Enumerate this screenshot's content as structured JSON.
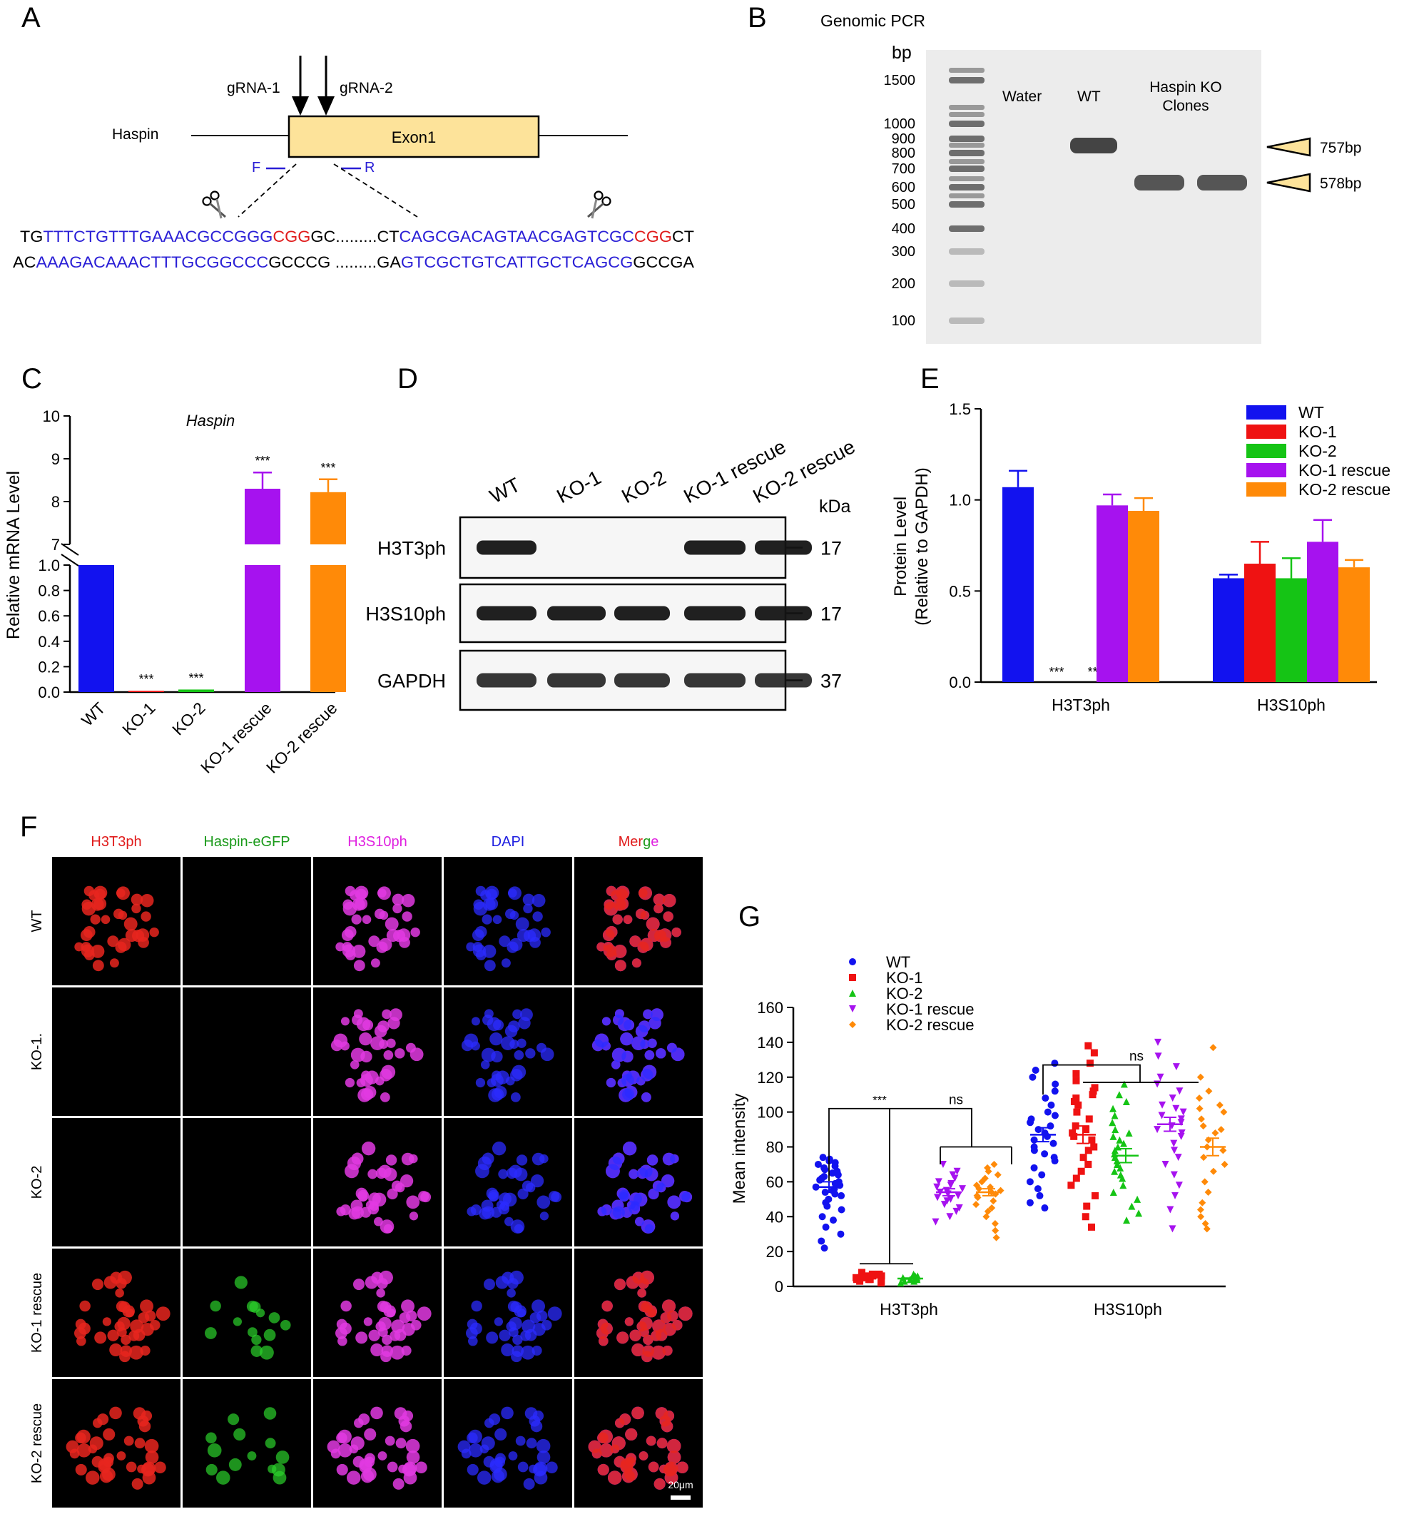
{
  "panels": {
    "A": {
      "letter": "A",
      "gene": "Haspin",
      "exon": "Exon1",
      "grna1": "gRNA-1",
      "grna2": "gRNA-2",
      "primer_f": "F",
      "primer_r": "R",
      "seq_top": [
        {
          "t": "TG",
          "c": "#000000"
        },
        {
          "t": "TTTCTGTTTGAAACGCCGGG",
          "c": "#2a1fd6"
        },
        {
          "t": "CGG",
          "c": "#e01b1b"
        },
        {
          "t": "GC.........CT",
          "c": "#000000"
        },
        {
          "t": "CAGCGACAGTAACGAGTCGC",
          "c": "#2a1fd6"
        },
        {
          "t": "CGG",
          "c": "#e01b1b"
        },
        {
          "t": "CT",
          "c": "#000000"
        }
      ],
      "seq_bottom": [
        {
          "t": "AC",
          "c": "#000000"
        },
        {
          "t": "AAAGACAAACTTTGCGGCCC",
          "c": "#2a1fd6"
        },
        {
          "t": "GCCCG .........GA",
          "c": "#000000"
        },
        {
          "t": "GTCGCTGTCATTGCTCAGCG",
          "c": "#2a1fd6"
        },
        {
          "t": "GCCGA",
          "c": "#000000"
        }
      ]
    },
    "B": {
      "letter": "B",
      "title": "Genomic PCR",
      "unit": "bp",
      "ladder": [
        "1500",
        "1000",
        "900",
        "800",
        "700",
        "600",
        "500",
        "400",
        "300",
        "200",
        "100"
      ],
      "lanes": [
        "Water",
        "WT",
        "Haspin KO\nClones"
      ],
      "bands": [
        "757bp",
        "578bp"
      ]
    },
    "D": {
      "letter": "D",
      "columns": [
        "WT",
        "KO-1",
        "KO-2",
        "KO-1 rescue",
        "KO-2 rescue"
      ],
      "kda_label": "kDa",
      "rows": [
        {
          "label": "H3T3ph",
          "kda": "17",
          "present": [
            1,
            0,
            0,
            1,
            1
          ]
        },
        {
          "label": "H3S10ph",
          "kda": "17",
          "present": [
            1,
            1,
            1,
            1,
            1
          ]
        },
        {
          "label": "GAPDH",
          "kda": "37",
          "present": [
            1,
            1,
            1,
            1,
            1
          ]
        }
      ]
    },
    "F": {
      "letter": "F",
      "channels": [
        {
          "name": "H3T3ph",
          "color": "#e01b1b"
        },
        {
          "name": "Haspin-eGFP",
          "color": "#1a9a1a"
        },
        {
          "name": "H3S10ph",
          "color": "#e020e0"
        },
        {
          "name": "DAPI",
          "color": "#2020e0"
        }
      ],
      "merge_parts": [
        {
          "t": "Mer",
          "c": "#e01b1b"
        },
        {
          "t": "g",
          "c": "#1a9a1a"
        },
        {
          "t": "e",
          "c": "#e020e0"
        }
      ],
      "rows": [
        "WT",
        "KO-1.",
        "KO-2",
        "KO-1 rescue",
        "KO-2 rescue"
      ],
      "scale_bar": "20μm"
    }
  },
  "chart_data": [
    {
      "panel": "C",
      "letter": "C",
      "type": "bar",
      "title": "Haspin",
      "ylabel": "Relative mRNA Level",
      "categories": [
        "WT",
        "KO-1",
        "KO-2",
        "KO-1 rescue",
        "KO-2 rescue"
      ],
      "values": [
        1.0,
        0.01,
        0.02,
        8.3,
        8.22
      ],
      "errors": [
        0,
        0,
        0,
        0.38,
        0.3
      ],
      "colors": [
        "#1212ef",
        "#ef1212",
        "#15c415",
        "#a612ef",
        "#ff8a08"
      ],
      "significance": [
        "",
        "***",
        "***",
        "***",
        "***"
      ],
      "y_lower_range": [
        0,
        1.0
      ],
      "y_lower_ticks": [
        "0.0",
        "0.2",
        "0.4",
        "0.6",
        "0.8",
        "1.0"
      ],
      "y_upper_range": [
        7,
        10
      ],
      "y_upper_ticks": [
        "7",
        "8",
        "9",
        "10"
      ]
    },
    {
      "panel": "E",
      "letter": "E",
      "type": "bar",
      "ylabel": "Protein Level\n(Relative to GAPDH)",
      "categories": [
        "H3T3ph",
        "H3S10ph"
      ],
      "ylim": [
        0,
        1.5
      ],
      "yticks": [
        "0.0",
        "0.5",
        "1.0",
        "1.5"
      ],
      "legend_position": "top-right",
      "series": [
        {
          "name": "WT",
          "color": "#1212ef",
          "values": [
            1.07,
            0.57
          ],
          "errors": [
            0.09,
            0.02
          ]
        },
        {
          "name": "KO-1",
          "color": "#ef1212",
          "values": [
            0,
            0.65
          ],
          "errors": [
            0,
            0.12
          ]
        },
        {
          "name": "KO-2",
          "color": "#15c415",
          "values": [
            0,
            0.57
          ],
          "errors": [
            0,
            0.11
          ]
        },
        {
          "name": "KO-1 rescue",
          "color": "#a612ef",
          "values": [
            0.97,
            0.77
          ],
          "errors": [
            0.06,
            0.12
          ]
        },
        {
          "name": "KO-2 rescue",
          "color": "#ff8a08",
          "values": [
            0.94,
            0.63
          ],
          "errors": [
            0.07,
            0.04
          ]
        }
      ],
      "significance": [
        [
          "",
          "***",
          "***",
          "",
          ""
        ],
        [
          "",
          "",
          "",
          "",
          ""
        ]
      ]
    },
    {
      "panel": "G",
      "letter": "G",
      "type": "scatter",
      "ylabel": "Mean intensity",
      "categories": [
        "H3T3ph",
        "H3S10ph"
      ],
      "ylim": [
        0,
        160
      ],
      "yticks": [
        "0",
        "20",
        "40",
        "60",
        "80",
        "100",
        "120",
        "140",
        "160"
      ],
      "legend_position": "top-left",
      "series": [
        {
          "name": "WT",
          "color": "#1212ef",
          "marker": "circle",
          "means": [
            57,
            87
          ],
          "sems": [
            3,
            4
          ],
          "points": [
            [
              22,
              26,
              30,
              34,
              38,
              40,
              44,
              46,
              48,
              50,
              52,
              53,
              54,
              55,
              56,
              57,
              58,
              59,
              60,
              61,
              62,
              63,
              64,
              65,
              66,
              67,
              68,
              69,
              70,
              71,
              72,
              73,
              74
            ],
            [
              45,
              48,
              52,
              56,
              60,
              64,
              68,
              72,
              74,
              76,
              78,
              80,
              82,
              84,
              86,
              88,
              90,
              92,
              94,
              96,
              98,
              100,
              104,
              108,
              112,
              116,
              120,
              124,
              128
            ]
          ]
        },
        {
          "name": "KO-1",
          "color": "#ef1212",
          "marker": "square",
          "means": [
            5,
            87
          ],
          "sems": [
            0.4,
            5
          ],
          "points": [
            [
              2,
              3,
              3,
              4,
              4,
              4,
              5,
              5,
              5,
              5,
              6,
              6,
              6,
              7,
              7,
              8
            ],
            [
              34,
              40,
              46,
              52,
              58,
              62,
              66,
              70,
              74,
              78,
              80,
              84,
              86,
              88,
              90,
              92,
              96,
              100,
              104,
              106,
              108,
              110,
              112,
              114,
              118,
              122,
              128,
              134,
              138
            ]
          ]
        },
        {
          "name": "KO-2",
          "color": "#15c415",
          "marker": "triangle-up",
          "means": [
            4.5,
            75
          ],
          "sems": [
            0.3,
            4
          ],
          "points": [
            [
              2,
              3,
              3,
              4,
              4,
              4,
              5,
              5,
              5,
              6,
              6,
              7
            ],
            [
              38,
              42,
              46,
              50,
              54,
              58,
              62,
              64,
              66,
              68,
              70,
              72,
              74,
              76,
              78,
              80,
              82,
              84,
              86,
              88,
              90,
              94,
              98,
              102,
              106,
              110,
              116
            ]
          ]
        },
        {
          "name": "KO-1 rescue",
          "color": "#a612ef",
          "marker": "triangle-down",
          "means": [
            54,
            93
          ],
          "sems": [
            2,
            4
          ],
          "points": [
            [
              37,
              40,
              43,
              45,
              47,
              49,
              50,
              51,
              52,
              53,
              54,
              55,
              56,
              57,
              58,
              59,
              60,
              62,
              64,
              66,
              70
            ],
            [
              33,
              44,
              52,
              58,
              64,
              70,
              74,
              78,
              82,
              86,
              88,
              90,
              92,
              94,
              96,
              98,
              100,
              102,
              104,
              108,
              112,
              116,
              120,
              126,
              132,
              140
            ]
          ]
        },
        {
          "name": "KO-2 rescue",
          "color": "#ff8a08",
          "marker": "diamond",
          "means": [
            54,
            80
          ],
          "sems": [
            2,
            5
          ],
          "points": [
            [
              28,
              32,
              36,
              40,
              43,
              45,
              47,
              49,
              51,
              52,
              53,
              54,
              55,
              56,
              57,
              58,
              60,
              62,
              64,
              66,
              68,
              70
            ],
            [
              33,
              36,
              40,
              44,
              48,
              54,
              60,
              66,
              70,
              74,
              78,
              80,
              84,
              88,
              90,
              92,
              96,
              100,
              102,
              104,
              108,
              112,
              120,
              137
            ]
          ]
        }
      ],
      "annotations": [
        "***",
        "ns",
        "ns"
      ]
    }
  ]
}
